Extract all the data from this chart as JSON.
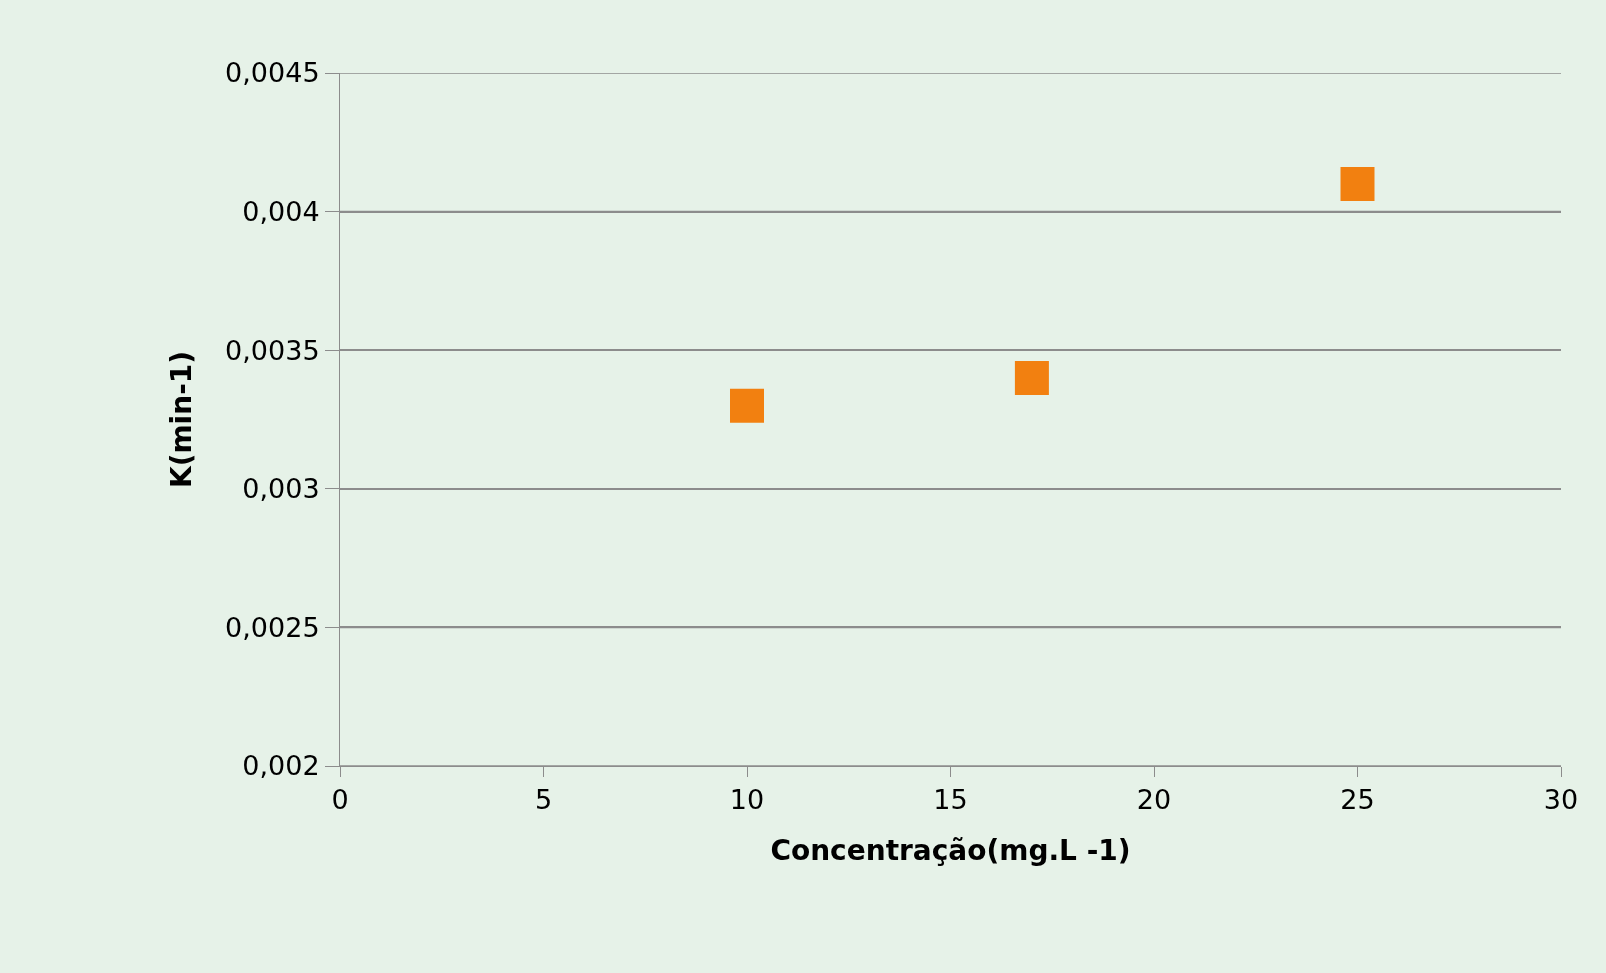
{
  "chart_data": {
    "type": "scatter",
    "xlabel": "Concentração(mg.L -1)",
    "ylabel": "K(min-1)",
    "x": [
      10,
      17,
      25
    ],
    "series": [
      {
        "color": "#f28010",
        "values": [
          0.0033,
          0.0034,
          0.0041
        ]
      }
    ],
    "marker": "square",
    "grid": "y",
    "xlim": [
      0,
      30
    ],
    "xticks": [
      0,
      5,
      10,
      15,
      20,
      25,
      30
    ],
    "ylim": [
      0.002,
      0.0045
    ],
    "yticks": [
      {
        "value": 0.002,
        "label": "0,002"
      },
      {
        "value": 0.0025,
        "label": "0,0025"
      },
      {
        "value": 0.003,
        "label": "0,003"
      },
      {
        "value": 0.0035,
        "label": "0,0035"
      },
      {
        "value": 0.004,
        "label": "0,004"
      },
      {
        "value": 0.0045,
        "label": "0,0045"
      }
    ]
  }
}
